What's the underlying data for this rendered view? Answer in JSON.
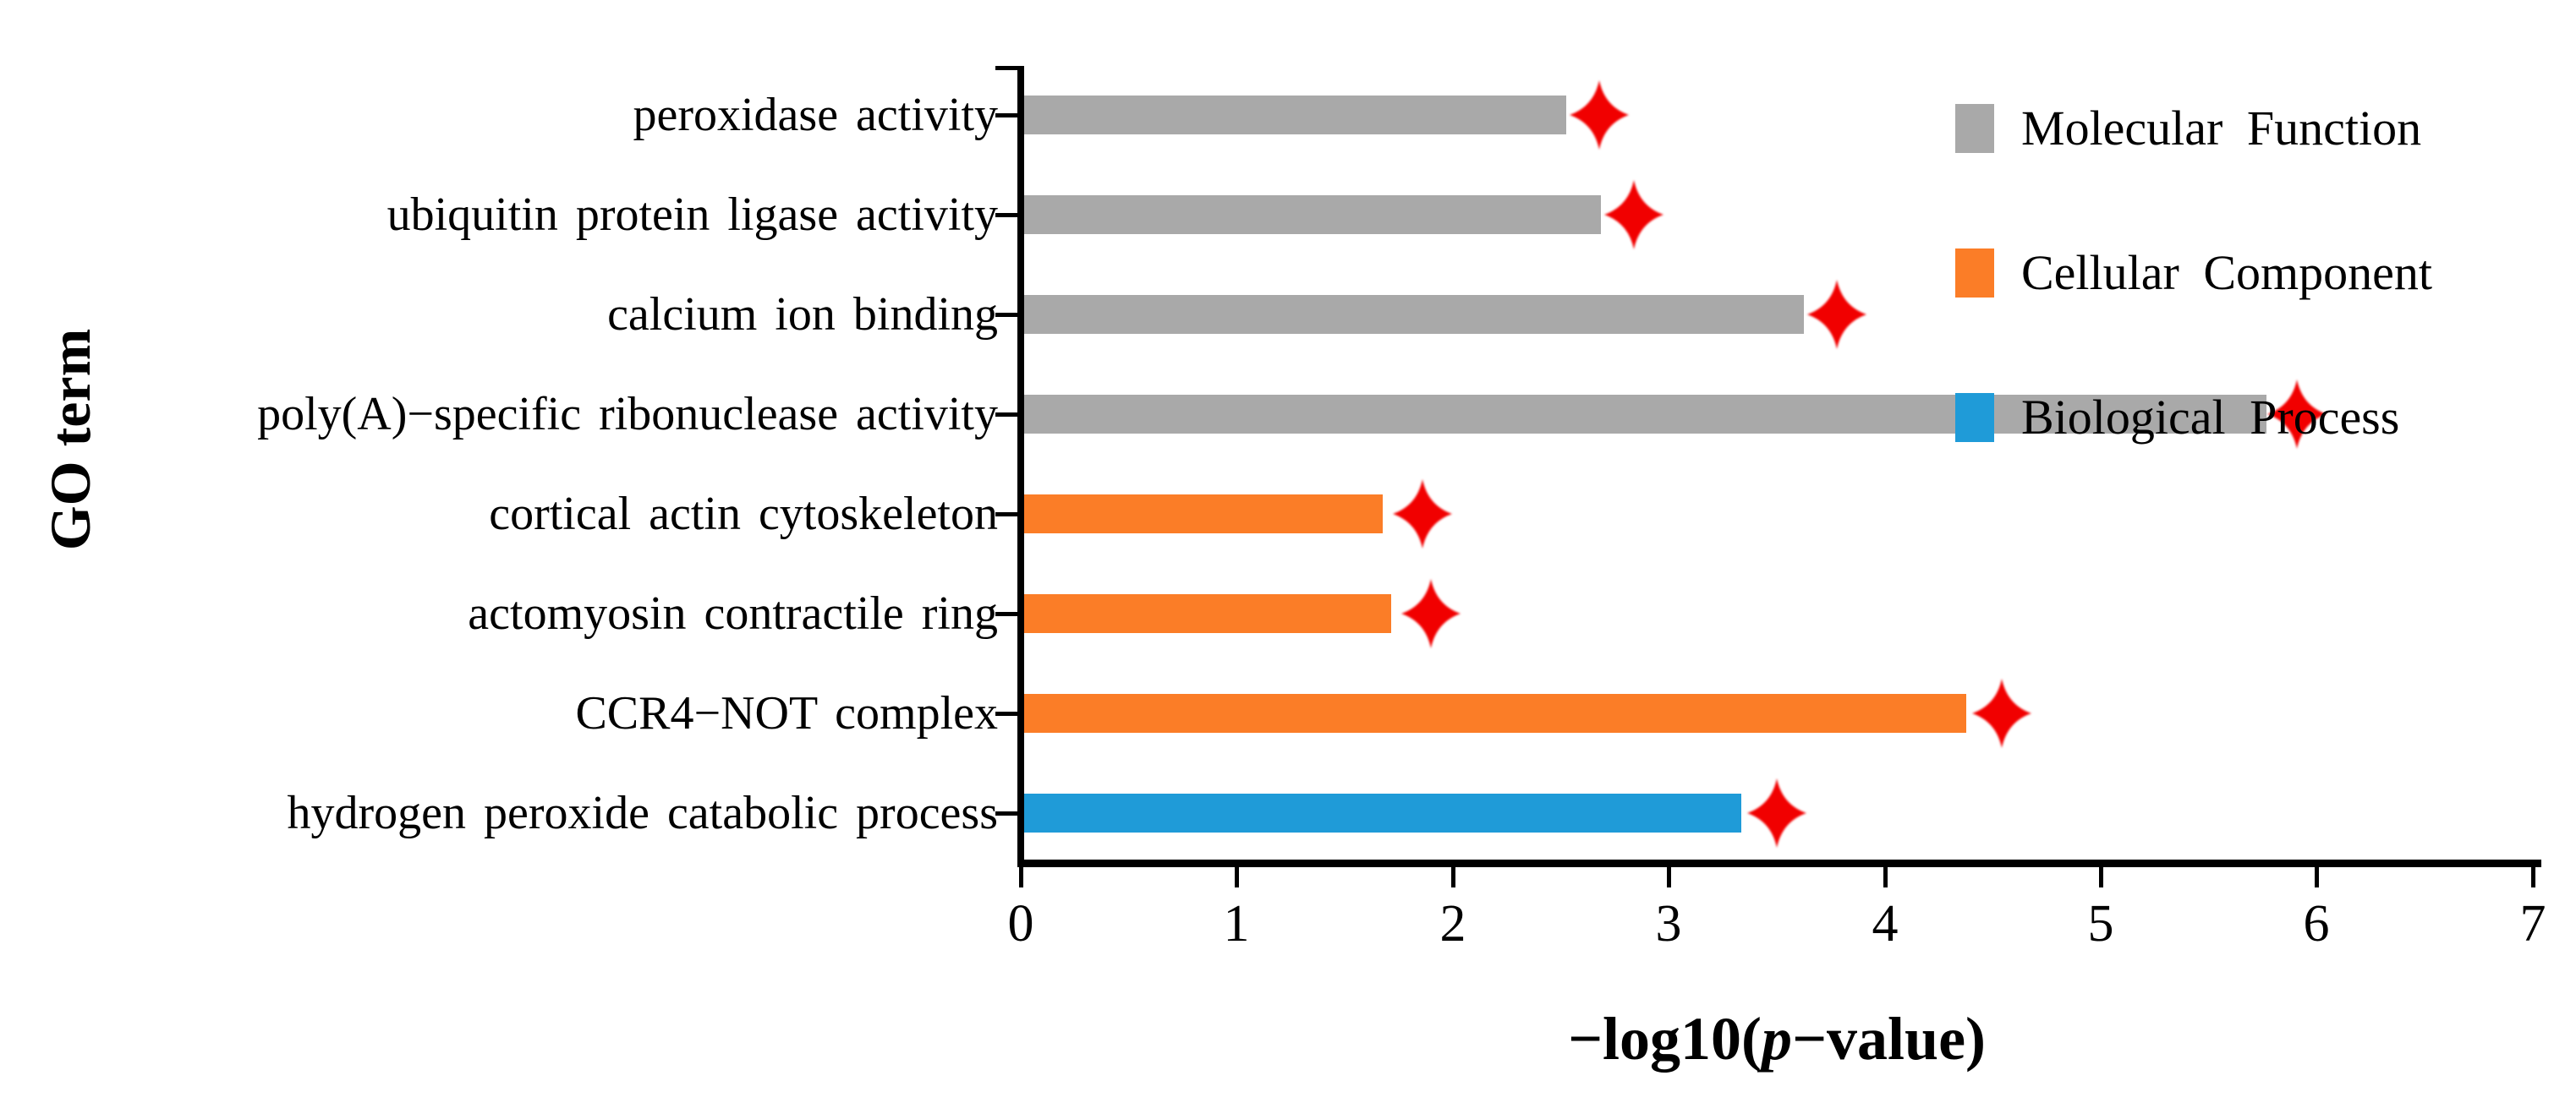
{
  "figure_title": "GO enrichment bar chart",
  "colors": {
    "molecular_function": "#a9a9a9",
    "cellular_component": "#fb7d27",
    "biological_process": "#1f9bd8",
    "star": "#f10000",
    "axis": "#000000"
  },
  "chart_data": {
    "type": "bar",
    "orientation": "horizontal",
    "xlabel": "−log10(p−value)",
    "xlabel_parts": {
      "prefix": "−log10(",
      "p": "p",
      "suffix": "−value)"
    },
    "ylabel": "GO term",
    "xlim": [
      0,
      7
    ],
    "x_ticks": [
      "0",
      "1",
      "2",
      "3",
      "4",
      "5",
      "6",
      "7"
    ],
    "grid": false,
    "legend_position": "top-right",
    "marker": {
      "shape": "four-pointed-star",
      "color": "#f10000"
    },
    "rows": [
      {
        "label": "peroxidase activity",
        "category": "Molecular Function",
        "category_key": "molecular_function",
        "value": 2.51,
        "star": 2.68
      },
      {
        "label": "ubiquitin protein ligase activity",
        "category": "Molecular Function",
        "category_key": "molecular_function",
        "value": 2.67,
        "star": 2.84
      },
      {
        "label": "calcium ion binding",
        "category": "Molecular Function",
        "category_key": "molecular_function",
        "value": 3.61,
        "star": 3.78
      },
      {
        "label": "poly(A)−specific ribonuclease activity",
        "category": "Molecular Function",
        "category_key": "molecular_function",
        "value": 5.75,
        "star": 5.91
      },
      {
        "label": "cortical actin cytoskeleton",
        "category": "Cellular Component",
        "category_key": "cellular_component",
        "value": 1.66,
        "star": 1.86
      },
      {
        "label": "actomyosin contractile ring",
        "category": "Cellular Component",
        "category_key": "cellular_component",
        "value": 1.7,
        "star": 1.9
      },
      {
        "label": "CCR4−NOT complex",
        "category": "Cellular Component",
        "category_key": "cellular_component",
        "value": 4.36,
        "star": 4.54
      },
      {
        "label": "hydrogen peroxide catabolic process",
        "category": "Biological Process",
        "category_key": "biological_process",
        "value": 3.32,
        "star": 3.5
      }
    ],
    "legend": [
      {
        "label": "Molecular Function",
        "category_key": "molecular_function"
      },
      {
        "label": "Cellular Component",
        "category_key": "cellular_component"
      },
      {
        "label": "Biological Process",
        "category_key": "biological_process"
      }
    ]
  }
}
